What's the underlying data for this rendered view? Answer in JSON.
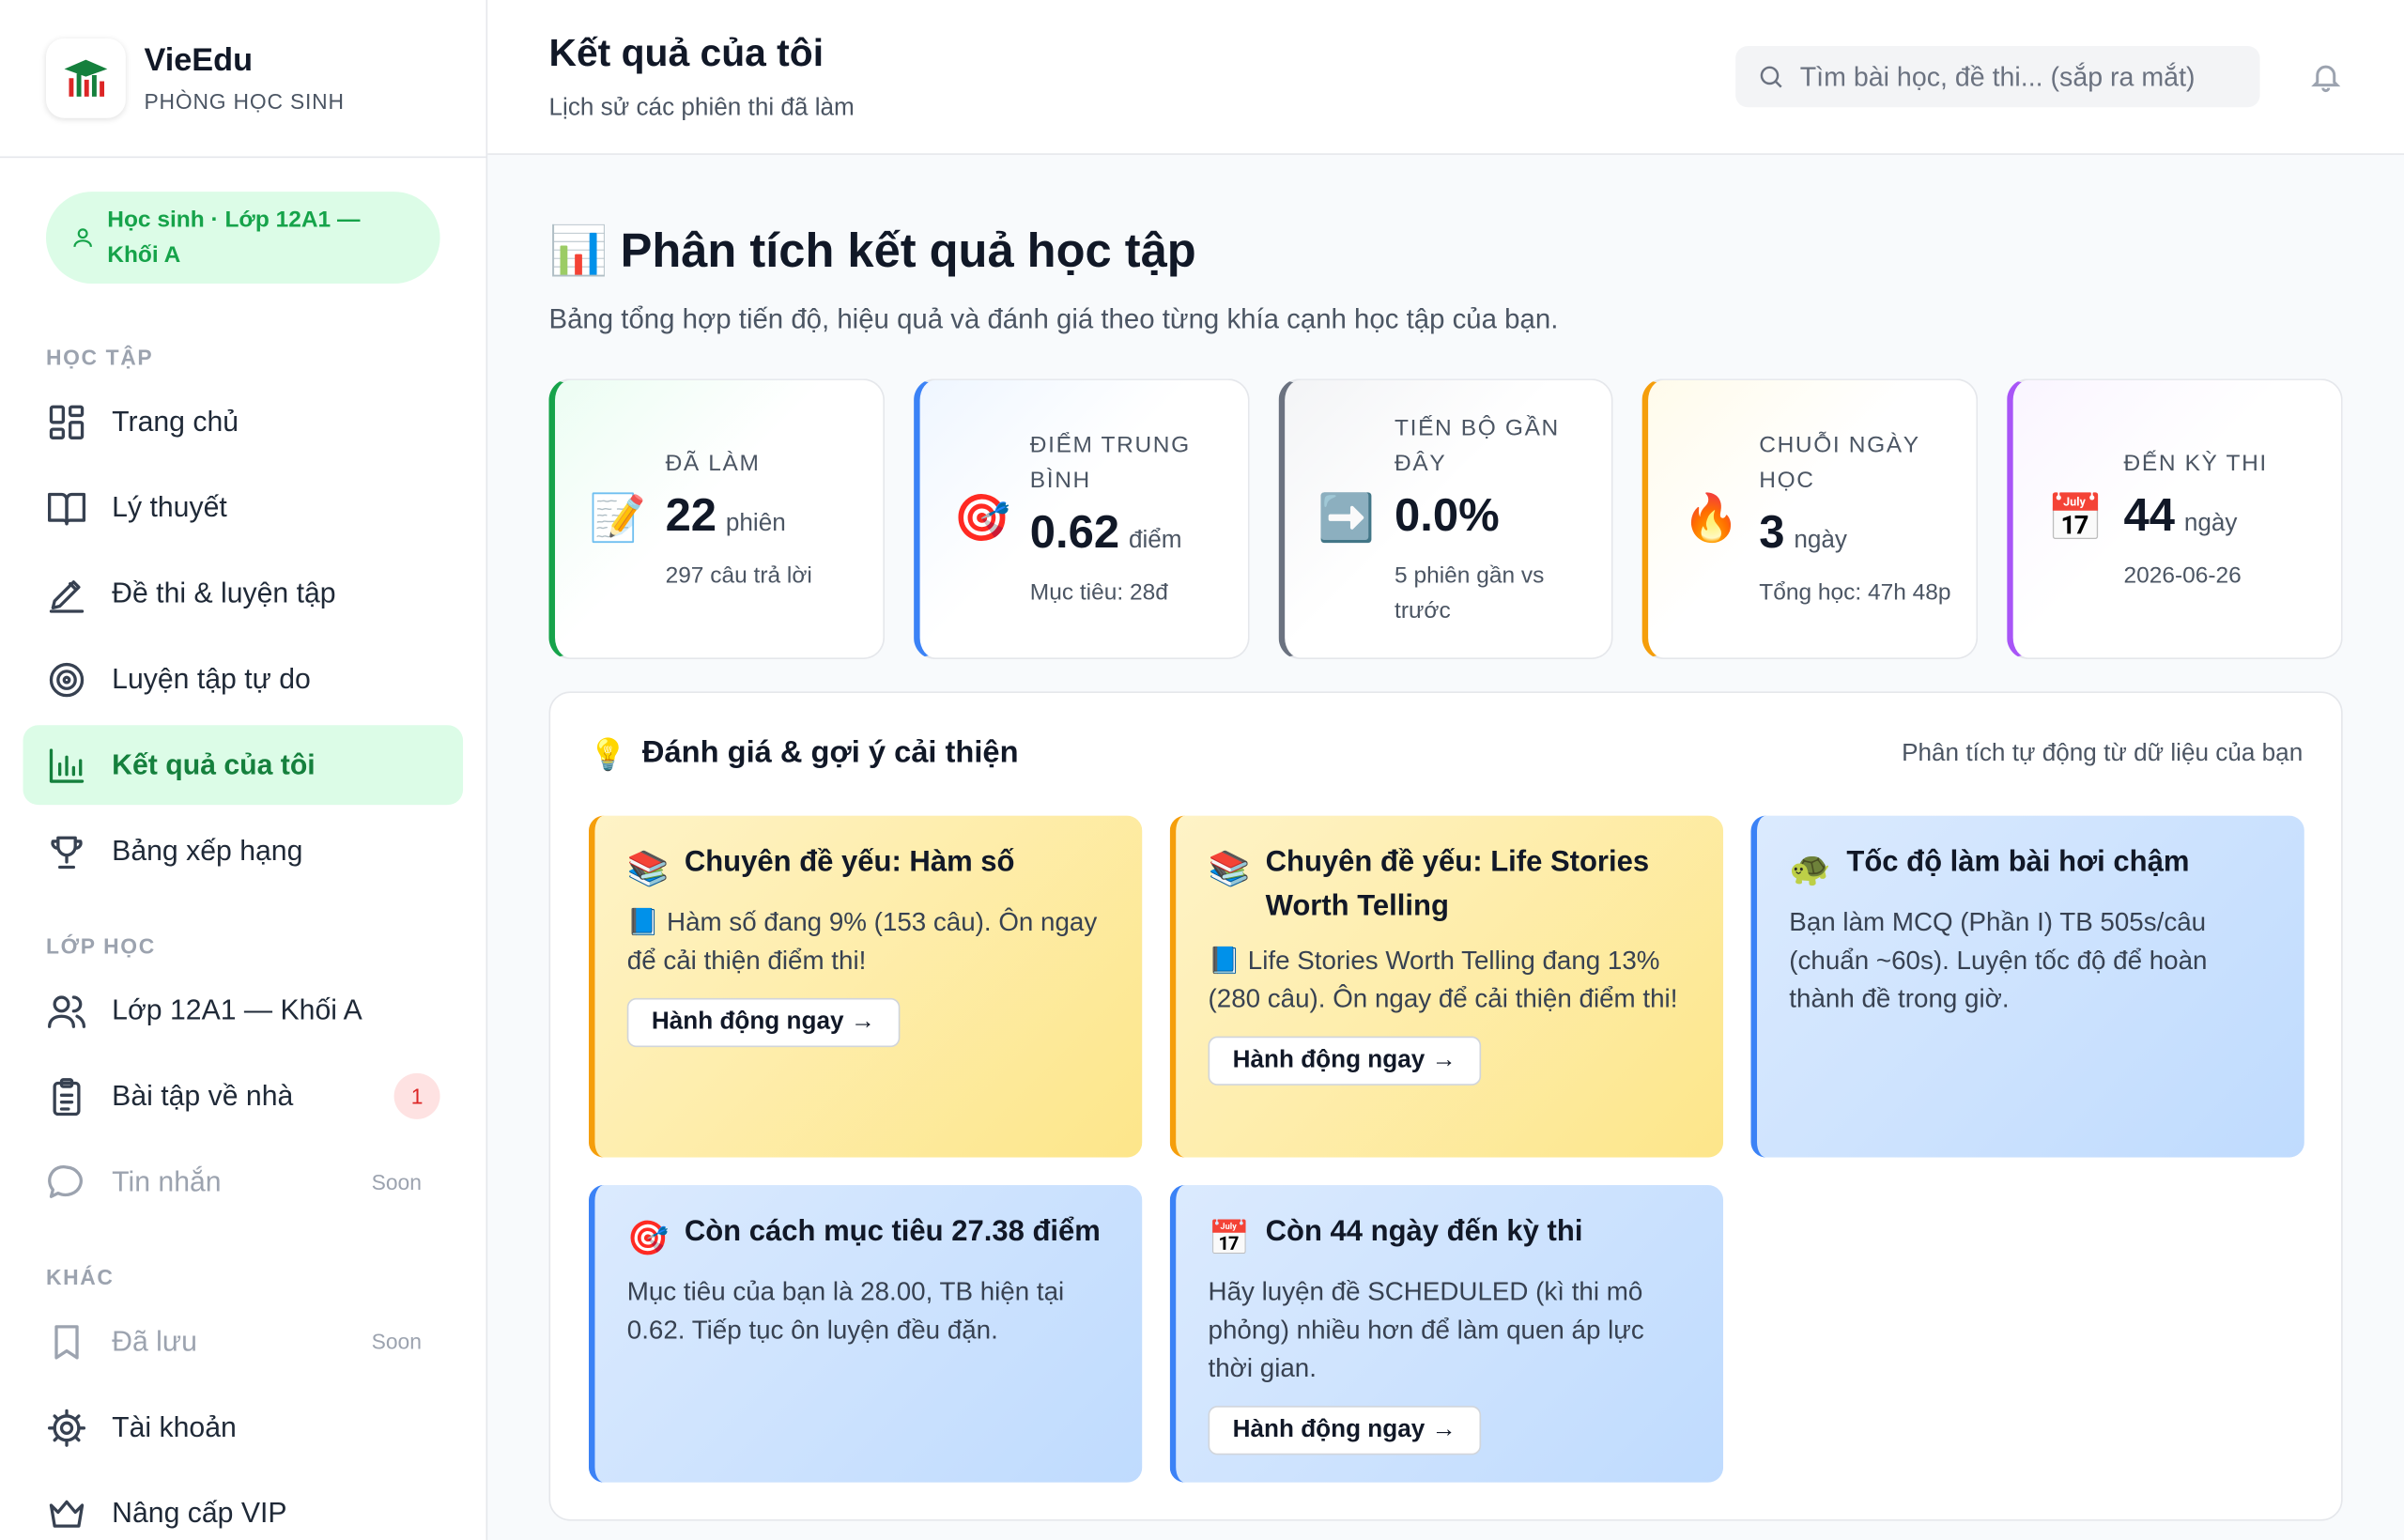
{
  "sidebar": {
    "brand": "VieEdu",
    "subtitle": "PHÒNG HỌC SINH",
    "user_badge": "Học sinh · Lớp 12A1 — Khối A",
    "sections": [
      {
        "title": "HỌC TẬP",
        "items": [
          {
            "label": "Trang chủ"
          },
          {
            "label": "Lý thuyết"
          },
          {
            "label": "Đề thi & luyện tập"
          },
          {
            "label": "Luyện tập tự do"
          },
          {
            "label": "Kết quả của tôi",
            "active": true
          },
          {
            "label": "Bảng xếp hạng"
          }
        ]
      },
      {
        "title": "LỚP HỌC",
        "items": [
          {
            "label": "Lớp 12A1 — Khối A"
          },
          {
            "label": "Bài tập về nhà",
            "badge": 1
          },
          {
            "label": "Tin nhắn",
            "tag": "Soon"
          }
        ]
      },
      {
        "title": "KHÁC",
        "items": [
          {
            "label": "Đã lưu",
            "tag": "Soon"
          },
          {
            "label": "Tài khoản"
          },
          {
            "label": "Nâng cấp VIP"
          }
        ]
      }
    ]
  },
  "header": {
    "title": "Kết quả của tôi",
    "subtitle": "Lịch sử các phiên thi đã làm",
    "search_placeholder": "Tìm bài học, đề thi... (sắp ra mắt)"
  },
  "analysis": {
    "icon": "📊",
    "title": "Phân tích kết quả học tập",
    "description": "Bảng tổng hợp tiến độ, hiệu quả và đánh giá theo từng khía cạnh học tập của bạn.",
    "stats": [
      {
        "icon": "📝",
        "label": "ĐÃ LÀM",
        "value": 22,
        "unit": "phiên",
        "note": "297 câu trả lời"
      },
      {
        "icon": "🎯",
        "label": "ĐIỂM TRUNG BÌNH",
        "value": 0.62,
        "unit": "điểm",
        "note": "Mục tiêu: 28đ"
      },
      {
        "icon": "➡️",
        "label": "TIẾN BỘ GẦN ĐÂY",
        "value": "0.0%",
        "note": "5 phiên gần vs trước"
      },
      {
        "icon": "🔥",
        "label": "CHUỖI NGÀY HỌC",
        "value": 3,
        "unit": "ngày",
        "note": "Tổng học: 47h 48p"
      },
      {
        "icon": "📅",
        "label": "ĐẾN KỲ THI",
        "value": 44,
        "unit": "ngày",
        "note": "2026-06-26"
      }
    ]
  },
  "suggestions": {
    "icon": "💡",
    "title": "Đánh giá & gợi ý cải thiện",
    "caption": "Phân tích tự động từ dữ liệu của bạn",
    "cards": [
      {
        "icon": "📚",
        "title": "Chuyên đề yếu: Hàm số",
        "body": "📘 Hàm số đang 9% (153 câu). Ôn ngay để cải thiện điểm thi!",
        "action": "Hành động ngay →"
      },
      {
        "icon": "📚",
        "title": "Chuyên đề yếu: Life Stories Worth Telling",
        "body": "📘 Life Stories Worth Telling đang 13% (280 câu). Ôn ngay để cải thiện điểm thi!",
        "action": "Hành động ngay →"
      },
      {
        "icon": "🐢",
        "title": "Tốc độ làm bài hơi chậm",
        "body": "Bạn làm MCQ (Phần I) TB 505s/câu (chuẩn ~60s). Luyện tốc độ để hoàn thành đề trong giờ."
      },
      {
        "icon": "🎯",
        "title": "Còn cách mục tiêu 27.38 điểm",
        "body": "Mục tiêu của bạn là 28.00, TB hiện tại 0.62. Tiếp tục ôn luyện đều đặn."
      },
      {
        "icon": "📅",
        "title": "Còn 44 ngày đến kỳ thi",
        "body": "Hãy luyện đề SCHEDULED (kì thi mô phỏng) nhiều hơn để làm quen áp lực thời gian.",
        "action": "Hành động ngay →"
      }
    ]
  }
}
